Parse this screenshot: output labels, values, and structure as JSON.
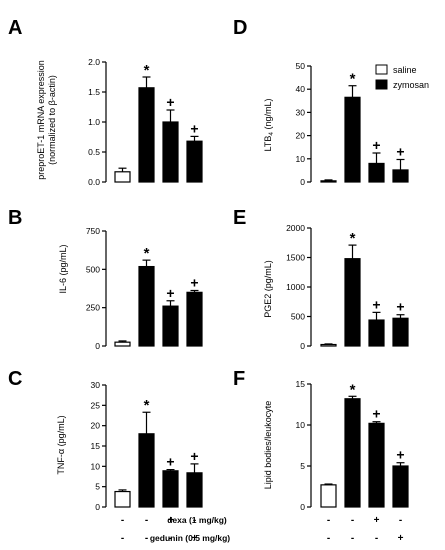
{
  "legend": {
    "items": [
      {
        "label": "saline",
        "fill": "#ffffff"
      },
      {
        "label": "zymosan",
        "fill": "#000000"
      }
    ]
  },
  "treatments": {
    "rows": [
      {
        "label": "dexa (1 mg/kg)",
        "signs": [
          "-",
          "-",
          "+",
          "-"
        ]
      },
      {
        "label": "gedunin (0.5 mg/kg)",
        "signs": [
          "-",
          "-",
          "-",
          "+"
        ]
      }
    ]
  },
  "chart_data": [
    {
      "panel": "A",
      "type": "bar",
      "ylabel": "preproET-1 mRNA expression (normalized to β-actin)",
      "ylim": [
        0,
        2.0
      ],
      "yticks": [
        "0.0",
        "0.5",
        "1.0",
        "1.5",
        "2.0"
      ],
      "values": [
        0.17,
        1.57,
        1.0,
        0.68
      ],
      "errors": [
        0.06,
        0.18,
        0.2,
        0.08
      ],
      "annotations": [
        "",
        "*",
        "+",
        "+"
      ]
    },
    {
      "panel": "D",
      "type": "bar",
      "ylabel": "LTB4 (ng/mL)",
      "ylim": [
        0,
        50
      ],
      "yticks": [
        "0",
        "10",
        "20",
        "30",
        "40",
        "50"
      ],
      "values": [
        0.5,
        36.5,
        8.0,
        5.2
      ],
      "errors": [
        0.4,
        5.0,
        4.5,
        4.5
      ],
      "annotations": [
        "",
        "*",
        "+",
        "+"
      ]
    },
    {
      "panel": "B",
      "type": "bar",
      "ylabel": "IL-6 (pg/mL)",
      "ylim": [
        0,
        750
      ],
      "yticks": [
        "0",
        "250",
        "500",
        "750"
      ],
      "values": [
        25,
        518,
        260,
        350
      ],
      "errors": [
        8,
        42,
        35,
        12
      ],
      "annotations": [
        "",
        "*",
        "+",
        "+"
      ]
    },
    {
      "panel": "E",
      "type": "bar",
      "ylabel": "PGE2 (pg/mL)",
      "ylim": [
        0,
        2000
      ],
      "yticks": [
        "0",
        "500",
        "1000",
        "1500",
        "2000"
      ],
      "values": [
        25,
        1480,
        440,
        470
      ],
      "errors": [
        10,
        230,
        130,
        60
      ],
      "annotations": [
        "",
        "*",
        "+",
        "+"
      ]
    },
    {
      "panel": "C",
      "type": "bar",
      "ylabel": "TNF-α (pg/mL)",
      "ylim": [
        0,
        30
      ],
      "yticks": [
        "0",
        "5",
        "10",
        "15",
        "20",
        "25",
        "30"
      ],
      "values": [
        3.8,
        18.0,
        8.9,
        8.4
      ],
      "errors": [
        0.4,
        5.3,
        0.3,
        2.2
      ],
      "annotations": [
        "",
        "*",
        "+",
        "+"
      ]
    },
    {
      "panel": "F",
      "type": "bar",
      "ylabel": "Lipid bodies/leukocyte",
      "ylim": [
        0,
        15
      ],
      "yticks": [
        "0",
        "5",
        "10",
        "15"
      ],
      "values": [
        2.7,
        13.2,
        10.2,
        5.0
      ],
      "errors": [
        0.1,
        0.3,
        0.2,
        0.4
      ],
      "annotations": [
        "",
        "*",
        "+",
        "+"
      ]
    }
  ]
}
